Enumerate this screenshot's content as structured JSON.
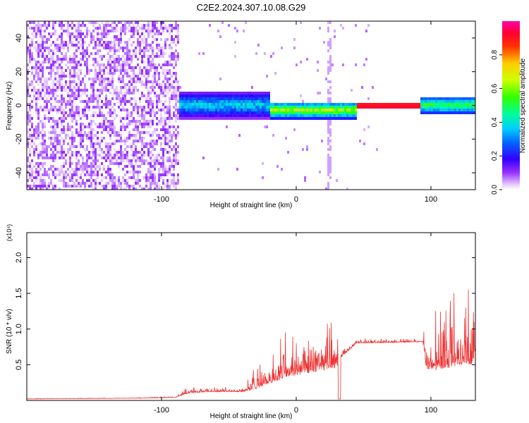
{
  "figure_title": "C2E2.2024.307.10.08.G29",
  "chart_data": [
    {
      "type": "heatmap",
      "title": "C2E2.2024.307.10.08.G29",
      "xlabel": "Height of straight line (km)",
      "ylabel": "Frequency (Hz)",
      "xlim": [
        -200,
        133
      ],
      "ylim": [
        -50,
        50
      ],
      "x_ticks": [
        -100,
        0,
        100
      ],
      "y_ticks": [
        -40,
        -20,
        0,
        20,
        40
      ],
      "colorbar": {
        "label": "Normalized spectral amplitude",
        "range": [
          0,
          1
        ],
        "ticks": [
          0.0,
          0.2,
          0.4,
          0.6,
          0.8
        ]
      },
      "description_regions": [
        {
          "x_range": [
            -200,
            -88
          ],
          "pattern": "broadband noise, amplitude 0.0-0.1"
        },
        {
          "x_range": [
            -88,
            -20
          ],
          "center_freq": 1,
          "spread_hz": 8,
          "amplitude": [
            0.1,
            0.45
          ]
        },
        {
          "x_range": [
            -20,
            45
          ],
          "center_freq": -2,
          "spread_hz": 5,
          "amplitude": [
            0.2,
            0.75
          ]
        },
        {
          "x_range": [
            45,
            92
          ],
          "center_freq": 0.5,
          "spread_hz": 1,
          "amplitude": [
            0.9,
            1.0
          ]
        },
        {
          "x_range": [
            92,
            133
          ],
          "center_freq": 1,
          "spread_hz": 5,
          "amplitude": [
            0.2,
            0.6
          ]
        }
      ]
    },
    {
      "type": "line",
      "xlabel": "Height of straight line (km)",
      "ylabel": "SNR (10 * v/v)",
      "y_multiplier": "(x10⁴)",
      "xlim": [
        -200,
        133
      ],
      "ylim": [
        0,
        2.35
      ],
      "x_ticks": [
        -100,
        0,
        100
      ],
      "y_ticks": [
        0.5,
        1.0,
        1.5,
        2.0
      ],
      "series": [
        {
          "color": "#ee3333",
          "envelope": [
            {
              "x": -200,
              "base": 0.02,
              "spread": 0.01
            },
            {
              "x": -120,
              "base": 0.03,
              "spread": 0.01
            },
            {
              "x": -90,
              "base": 0.04,
              "spread": 0.02
            },
            {
              "x": -80,
              "base": 0.1,
              "spread": 0.12
            },
            {
              "x": -65,
              "base": 0.12,
              "spread": 0.1
            },
            {
              "x": -40,
              "base": 0.12,
              "spread": 0.08
            },
            {
              "x": -32,
              "base": 0.15,
              "spread": 0.3
            },
            {
              "x": -10,
              "base": 0.3,
              "spread": 0.8
            },
            {
              "x": 0,
              "base": 0.35,
              "spread": 0.7
            },
            {
              "x": 30,
              "base": 0.45,
              "spread": 0.85
            },
            {
              "x": 33,
              "base": 0.6,
              "spread": 0.15
            },
            {
              "x": 45,
              "base": 0.8,
              "spread": 0.08
            },
            {
              "x": 94,
              "base": 0.82,
              "spread": 0.05
            },
            {
              "x": 97,
              "base": 0.4,
              "spread": 1.0
            },
            {
              "x": 125,
              "base": 0.5,
              "spread": 1.25
            },
            {
              "x": 133,
              "base": 0.5,
              "spread": 1.1
            }
          ]
        }
      ]
    }
  ],
  "colors": {
    "line": "#ee3333",
    "axis": "#000000"
  }
}
